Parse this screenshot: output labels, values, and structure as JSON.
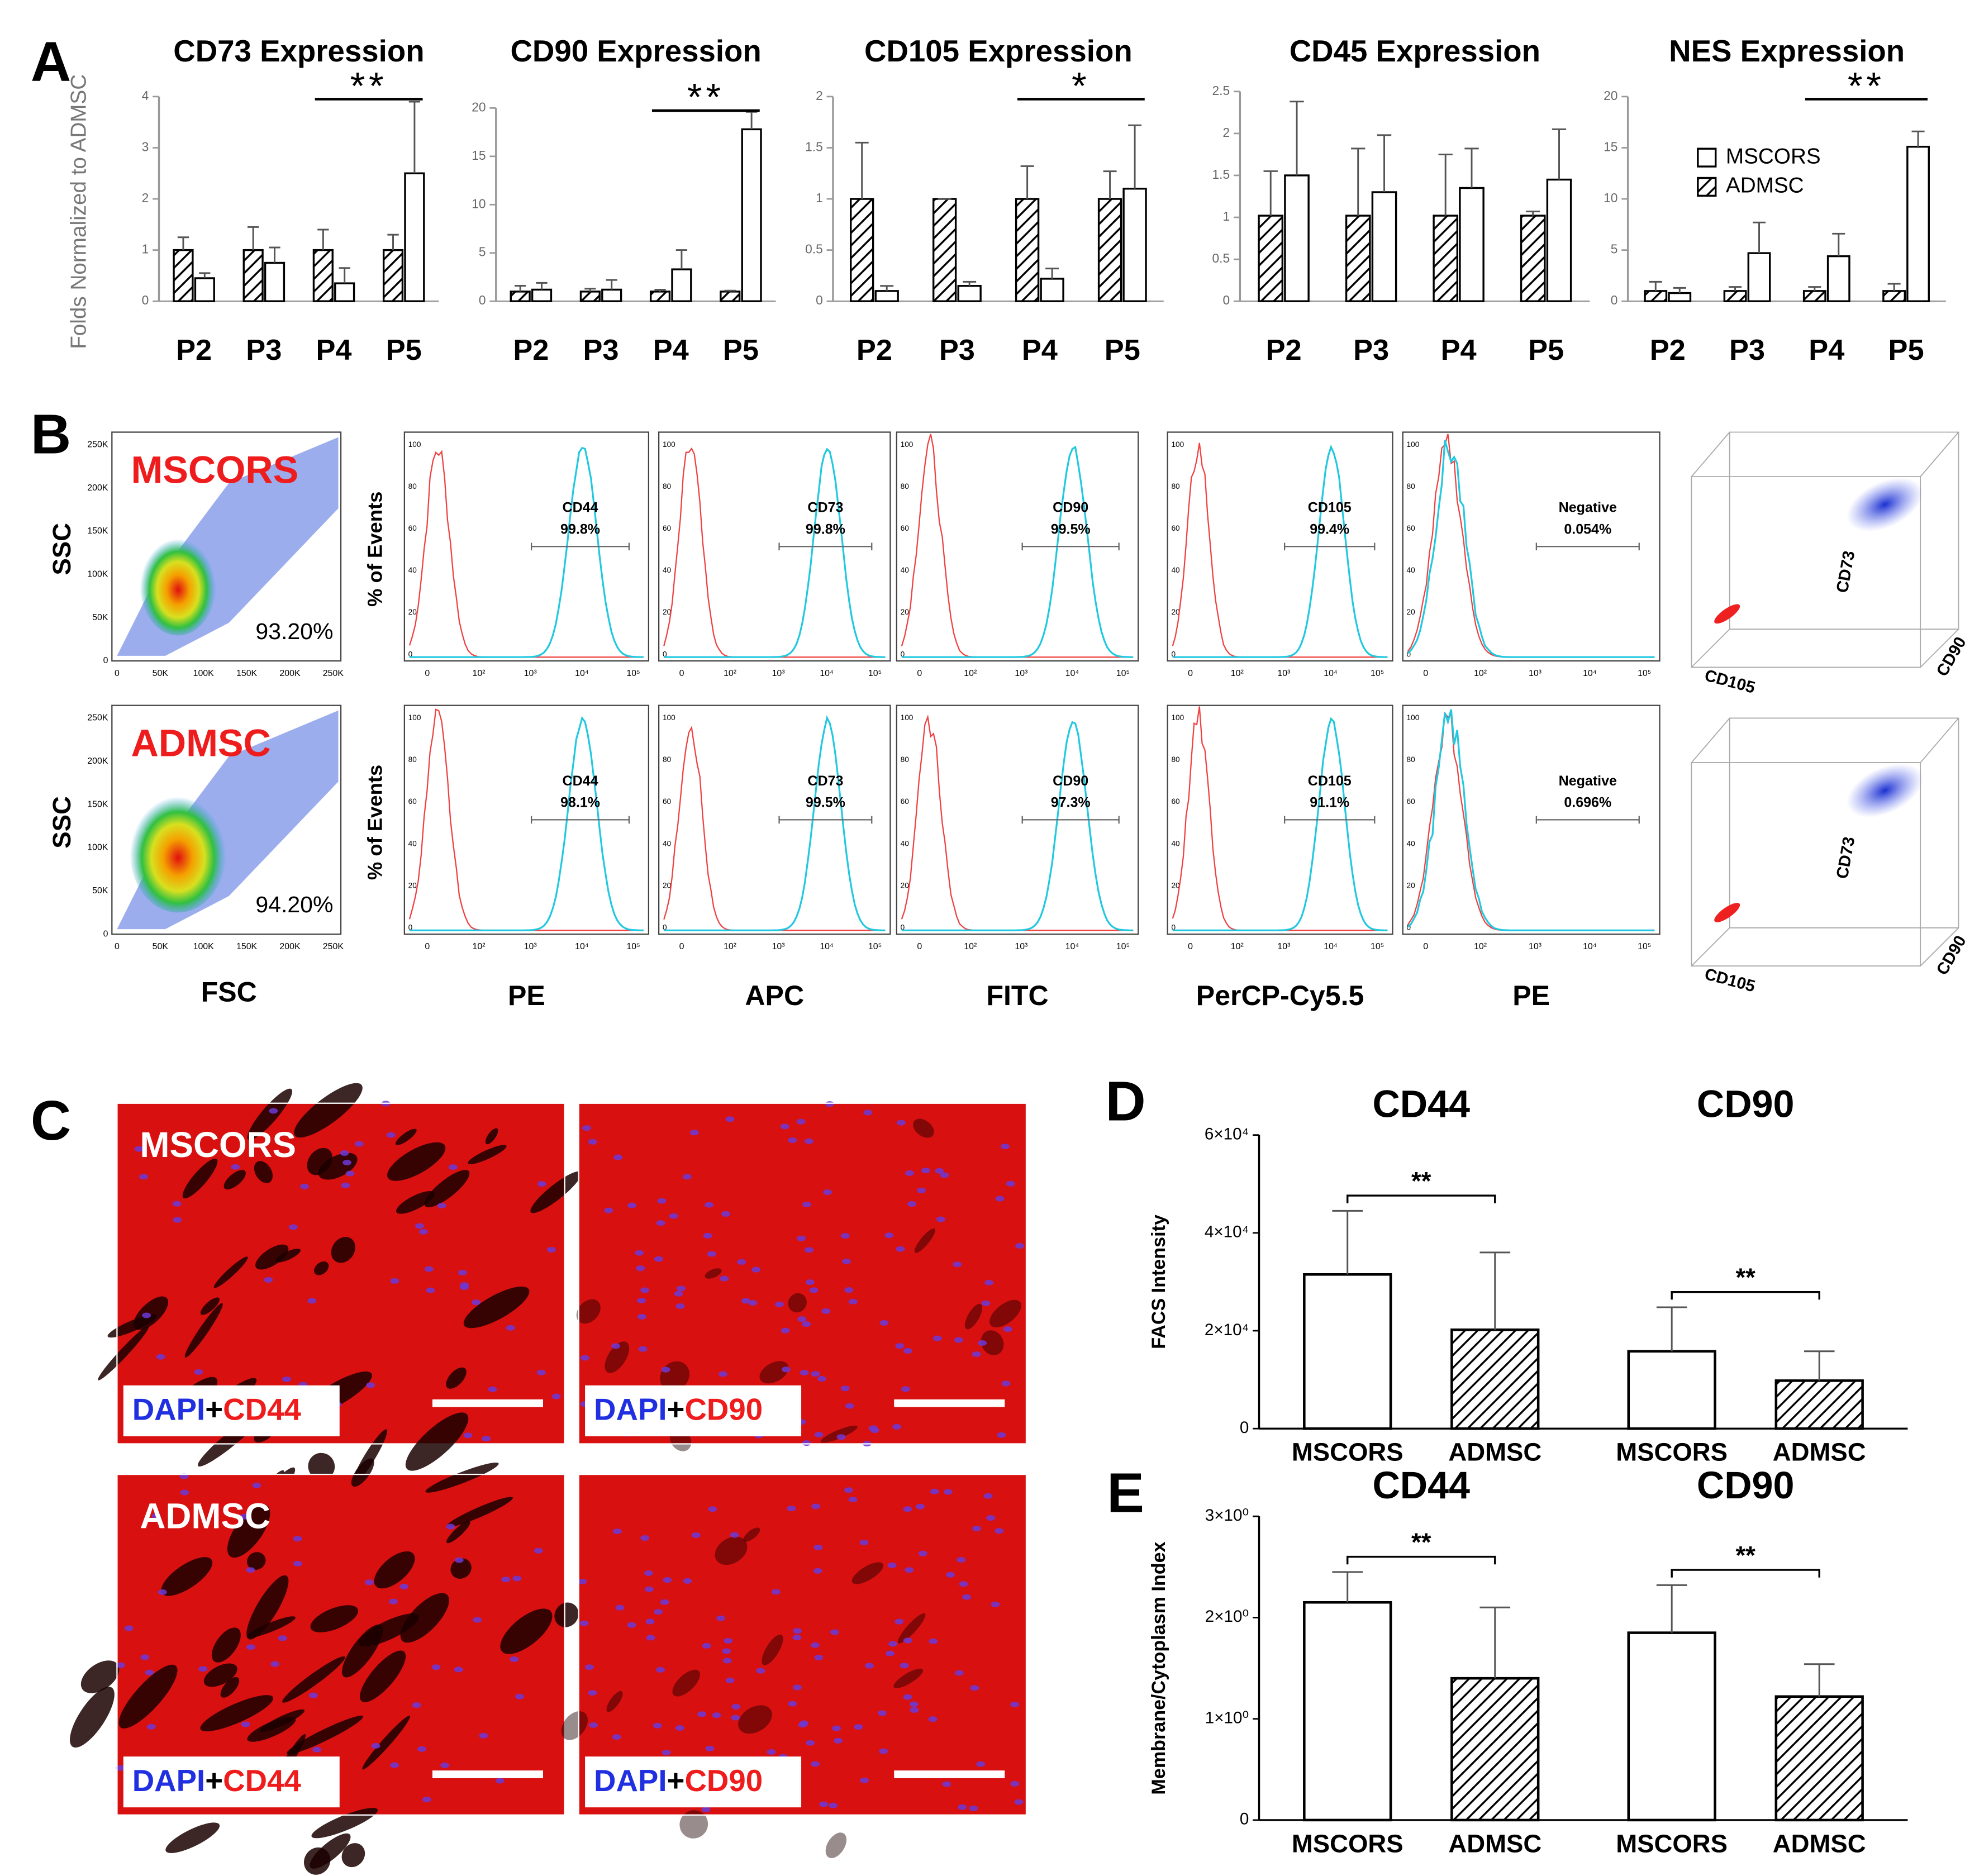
{
  "panel_labels": [
    "A",
    "B",
    "C",
    "D",
    "E"
  ],
  "chart_data": [
    {
      "type": "bar",
      "title": "CD73 Expression",
      "y_label": "Folds Normalized to ADMSC",
      "categories": [
        "P2",
        "P3",
        "P4",
        "P5"
      ],
      "ylim": [
        0,
        4
      ],
      "yticks": [
        0,
        1,
        2,
        3,
        4
      ],
      "series": [
        {
          "pattern": "hatch",
          "color": "#000000",
          "values": [
            1,
            1,
            1,
            1
          ],
          "errors": [
            0.25,
            0.45,
            0.4,
            0.3
          ]
        },
        {
          "pattern": "open",
          "color": "#000000",
          "values": [
            0.45,
            0.75,
            0.35,
            2.5
          ],
          "errors": [
            0.1,
            0.3,
            0.3,
            1.4
          ]
        }
      ],
      "annotations": [
        {
          "text": "**",
          "between": [
            2,
            3
          ]
        }
      ]
    },
    {
      "type": "bar",
      "title": "CD90 Expression",
      "categories": [
        "P2",
        "P3",
        "P4",
        "P5"
      ],
      "ylim": [
        0,
        20
      ],
      "yticks": [
        0,
        5,
        10,
        15,
        20
      ],
      "series": [
        {
          "pattern": "hatch",
          "color": "#000000",
          "values": [
            1,
            1,
            1,
            1
          ],
          "errors": [
            0.6,
            0.3,
            0.2,
            0.1
          ]
        },
        {
          "pattern": "open",
          "color": "#000000",
          "values": [
            1.2,
            1.2,
            3.3,
            17.8
          ],
          "errors": [
            0.7,
            1,
            2,
            1.8
          ]
        }
      ],
      "annotations": [
        {
          "text": "**",
          "between": [
            2,
            3
          ]
        }
      ]
    },
    {
      "type": "bar",
      "title": "CD105 Expression",
      "categories": [
        "P2",
        "P3",
        "P4",
        "P5"
      ],
      "ylim": [
        0,
        2
      ],
      "yticks": [
        0,
        0.5,
        1,
        1.5,
        2
      ],
      "series": [
        {
          "pattern": "hatch",
          "color": "#000000",
          "values": [
            1,
            1,
            1,
            1
          ],
          "errors": [
            0.55,
            0,
            0.32,
            0.27
          ]
        },
        {
          "pattern": "open",
          "color": "#000000",
          "values": [
            0.1,
            0.15,
            0.22,
            1.1
          ],
          "errors": [
            0.05,
            0.04,
            0.1,
            0.62
          ]
        }
      ],
      "annotations": [
        {
          "text": "*",
          "between": [
            2,
            3
          ]
        }
      ]
    },
    {
      "type": "bar",
      "title": "CD45 Expression",
      "categories": [
        "P2",
        "P3",
        "P4",
        "P5"
      ],
      "ylim": [
        0,
        2.5
      ],
      "yticks": [
        0,
        0.5,
        1,
        1.5,
        2,
        2.5
      ],
      "series": [
        {
          "pattern": "hatch",
          "color": "#000000",
          "values": [
            1.02,
            1.02,
            1.02,
            1.02
          ],
          "errors": [
            0.53,
            0.8,
            0.73,
            0.05
          ]
        },
        {
          "pattern": "open",
          "color": "#000000",
          "values": [
            1.5,
            1.3,
            1.35,
            1.45
          ],
          "errors": [
            0.88,
            0.68,
            0.47,
            0.6
          ]
        }
      ]
    },
    {
      "type": "bar",
      "title": "NES Expression",
      "categories": [
        "P2",
        "P3",
        "P4",
        "P5"
      ],
      "ylim": [
        0,
        20
      ],
      "yticks": [
        0,
        5,
        10,
        15,
        20
      ],
      "legend": "upper center",
      "series": [
        {
          "name": "ADMSC",
          "pattern": "hatch",
          "color": "#000000",
          "values": [
            1,
            1,
            1,
            1
          ],
          "errors": [
            0.9,
            0.4,
            0.4,
            0.7
          ]
        },
        {
          "name": "MSCORS",
          "pattern": "open",
          "color": "#000000",
          "values": [
            0.8,
            4.7,
            4.4,
            15.1
          ],
          "errors": [
            0.5,
            3,
            2.2,
            1.5
          ]
        }
      ],
      "annotations": [
        {
          "text": "**",
          "between": [
            2,
            3
          ]
        }
      ]
    },
    {
      "type": "grouped-bar",
      "groups": [
        "CD44",
        "CD90"
      ],
      "y_label": "FACS Intensity",
      "ylim": [
        0,
        60000
      ],
      "yticks": [
        0,
        {
          "value": 20000,
          "label": "2×10⁴"
        },
        {
          "value": 40000,
          "label": "4×10⁴"
        },
        {
          "value": 60000,
          "label": "6×10⁴"
        }
      ],
      "series": [
        {
          "name": "MSCORS",
          "pattern": "open",
          "color": "#000000",
          "values": [
            31500,
            15800
          ],
          "errors": [
            13000,
            9000
          ]
        },
        {
          "name": "ADMSC",
          "pattern": "hatch",
          "color": "#000000",
          "values": [
            20200,
            9800
          ],
          "errors": [
            15800,
            6000
          ]
        }
      ],
      "annotations": [
        {
          "text": "**",
          "group": 0
        },
        {
          "text": "**",
          "group": 1
        }
      ]
    },
    {
      "type": "grouped-bar",
      "groups": [
        "CD44",
        "CD90"
      ],
      "y_label": "Membrane/Cytoplasm Index",
      "ylim": [
        0,
        3
      ],
      "yticks": [
        0,
        {
          "value": 1,
          "label": "1×10⁰"
        },
        {
          "value": 2,
          "label": "2×10⁰"
        },
        {
          "value": 3,
          "label": "3×10⁰"
        }
      ],
      "series": [
        {
          "name": "MSCORS",
          "pattern": "open",
          "color": "#000000",
          "values": [
            2.15,
            1.85
          ],
          "errors": [
            0.3,
            0.47
          ]
        },
        {
          "name": "ADMSC",
          "pattern": "hatch",
          "color": "#000000",
          "values": [
            1.4,
            1.22
          ],
          "errors": [
            0.7,
            0.32
          ]
        }
      ],
      "annotations": [
        {
          "text": "**",
          "group": 0
        },
        {
          "text": "**",
          "group": 1
        }
      ]
    }
  ],
  "flow_cytometry": {
    "scatter_x_label": "FSC",
    "scatter_y_label": "SSC",
    "scatter_ticks": [
      "0",
      "50K",
      "100K",
      "150K",
      "200K",
      "250K"
    ],
    "histogram_y_label": "% of Events",
    "histogram_y_ticks": [
      "0",
      "20",
      "40",
      "60",
      "80",
      "100"
    ],
    "histogram_x_ticks": [
      "0",
      "10²",
      "10³",
      "10⁴",
      "10⁵"
    ],
    "channels": [
      "PE",
      "APC",
      "FITC",
      "PerCP-Cy5.5",
      "PE"
    ],
    "rows": [
      {
        "sample": "MSCORS",
        "gate": "93.20%",
        "markers": [
          {
            "name": "CD44",
            "percent": "99.8%"
          },
          {
            "name": "CD73",
            "percent": "99.8%"
          },
          {
            "name": "CD90",
            "percent": "99.5%"
          },
          {
            "name": "CD105",
            "percent": "99.4%"
          },
          {
            "name": "Negative",
            "percent": "0.054%"
          }
        ]
      },
      {
        "sample": "ADMSC",
        "gate": "94.20%",
        "markers": [
          {
            "name": "CD44",
            "percent": "98.1%"
          },
          {
            "name": "CD73",
            "percent": "99.5%"
          },
          {
            "name": "CD90",
            "percent": "97.3%"
          },
          {
            "name": "CD105",
            "percent": "91.1%"
          },
          {
            "name": "Negative",
            "percent": "0.696%"
          }
        ]
      }
    ],
    "cube_labels": [
      "CD73",
      "CD105",
      "CD90"
    ]
  },
  "imaging": {
    "samples": [
      "MSCORS",
      "ADMSC"
    ],
    "stain": "DAPI",
    "join": "+",
    "markers": [
      "CD44",
      "CD90"
    ]
  }
}
